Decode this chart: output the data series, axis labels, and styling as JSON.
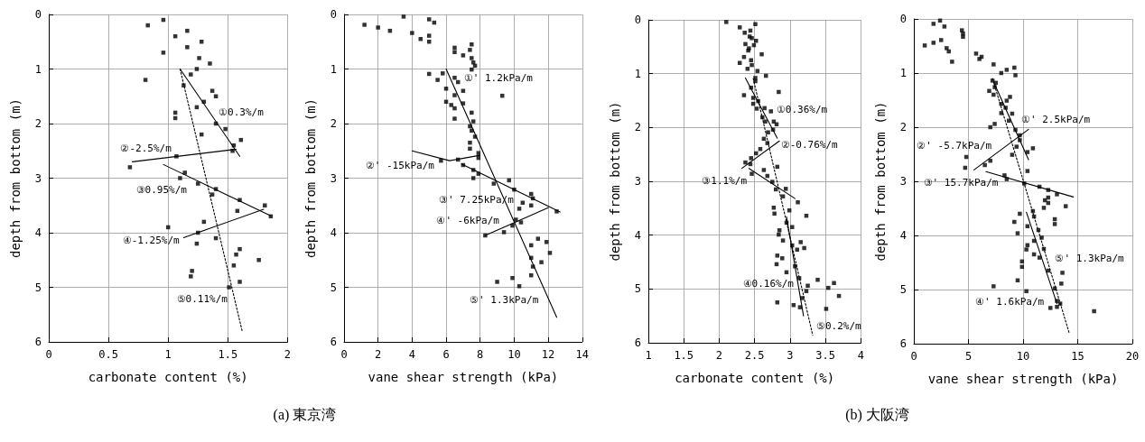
{
  "chart_data": [
    {
      "type": "scatter",
      "xlabel": "carbonate content (%)",
      "ylabel": "depth from bottom (m)",
      "xlim": [
        0,
        2
      ],
      "xticks": [
        0,
        0.5,
        1,
        1.5,
        2
      ],
      "ylim": [
        6,
        0
      ],
      "yticks": [
        0,
        1,
        2,
        3,
        4,
        5,
        6
      ],
      "grid": true,
      "marker": "square",
      "series": [
        {
          "type": "scatter",
          "color": "#000000",
          "x": [
            0.96,
            0.83,
            1.16,
            1.06,
            1.28,
            1.16,
            0.96,
            1.26,
            1.35,
            1.24,
            1.19,
            0.81,
            1.13,
            1.37,
            1.4,
            1.3,
            1.24,
            1.06,
            1.06,
            1.4,
            1.48,
            1.28,
            1.61,
            1.55,
            1.54,
            1.07,
            0.68,
            1.14,
            1.1,
            1.25,
            1.4,
            1.37,
            1.6,
            1.81,
            1.58,
            1.86,
            1.3,
            1.0,
            1.25,
            1.4,
            1.24,
            1.6,
            1.57,
            1.76,
            1.55,
            1.2,
            1.19,
            1.6,
            1.51
          ],
          "values": [
            0.1,
            0.2,
            0.3,
            0.4,
            0.5,
            0.6,
            0.7,
            0.8,
            0.9,
            1.0,
            1.1,
            1.2,
            1.3,
            1.4,
            1.5,
            1.6,
            1.7,
            1.8,
            1.9,
            2.0,
            2.1,
            2.2,
            2.3,
            2.4,
            2.5,
            2.6,
            2.8,
            2.9,
            3.0,
            3.1,
            3.2,
            3.3,
            3.4,
            3.5,
            3.6,
            3.7,
            3.8,
            3.9,
            4.0,
            4.1,
            4.2,
            4.3,
            4.4,
            4.5,
            4.6,
            4.7,
            4.8,
            4.9,
            5.0
          ]
        },
        {
          "type": "line",
          "color": "#000000",
          "marker": "none",
          "line_style": "solid",
          "x": [
            1.1,
            1.6
          ],
          "values": [
            1.0,
            2.6
          ]
        },
        {
          "type": "line",
          "color": "#000000",
          "marker": "none",
          "line_style": "solid",
          "x": [
            0.7,
            1.57
          ],
          "values": [
            2.7,
            2.47
          ]
        },
        {
          "type": "line",
          "color": "#000000",
          "marker": "none",
          "line_style": "solid",
          "x": [
            0.96,
            1.86
          ],
          "values": [
            2.75,
            3.69
          ]
        },
        {
          "type": "line",
          "color": "#000000",
          "marker": "none",
          "line_style": "solid",
          "x": [
            1.13,
            1.8
          ],
          "values": [
            4.09,
            3.57
          ]
        },
        {
          "type": "line",
          "color": "#000000",
          "marker": "none",
          "line_style": "dotted",
          "x": [
            1.1,
            1.62
          ],
          "values": [
            1.0,
            5.8
          ]
        }
      ],
      "annotations": [
        {
          "text": "①0.3%/m",
          "x": 1.37,
          "y": 1.8
        },
        {
          "text": "②-2.5%/m",
          "x": 1.08,
          "y": 2.57
        },
        {
          "text": "③0.95%/m",
          "x": 1.21,
          "y": 3.04
        },
        {
          "text": "④-1.25%/m",
          "x": 1.17,
          "y": 4.03
        },
        {
          "text": "⑤0.11%/m",
          "x": 1.55,
          "y": 5.22
        },
        "(a)  東京湾"
      ]
    },
    {
      "type": "scatter",
      "xlabel": "vane shear strength (kPa)",
      "ylabel": "depth from bottom (m)",
      "xlim": [
        0,
        14
      ],
      "xticks": [
        0,
        2,
        4,
        6,
        8,
        10,
        12,
        14
      ],
      "ylim": [
        6,
        0
      ],
      "yticks": [
        0,
        1,
        2,
        3,
        4,
        5,
        6
      ],
      "grid": true,
      "marker": "square",
      "series": [
        {
          "type": "scatter",
          "color": "#000000",
          "x": [
            1.2,
            2.0,
            2.7,
            3.5,
            4.0,
            4.5,
            5.0,
            5.3,
            5.0,
            5.0,
            6.5,
            7.5,
            6.5,
            7.0,
            7.4,
            7.5,
            7.6,
            7.7,
            7.5,
            5.0,
            5.8,
            5.5,
            6.5,
            6.7,
            6.0,
            7.0,
            6.5,
            6.0,
            6.3,
            6.5,
            7.0,
            7.5,
            6.5,
            7.6,
            7.4,
            7.5,
            7.7,
            7.4,
            7.4,
            7.9,
            7.9,
            6.7,
            5.7,
            7.0,
            7.6,
            7.9,
            7.6,
            8.8,
            9.7,
            10.0,
            11.0,
            11.1,
            10.5,
            10.3,
            11.0,
            12.5,
            10.1,
            10.4,
            9.9,
            9.4,
            8.3,
            11.4,
            11.9,
            11.0,
            12.1,
            11.0,
            11.6,
            11.1,
            11.0,
            9.9,
            9.0,
            10.3,
            9.3
          ],
          "values": [
            0.19,
            0.24,
            0.3,
            0.04,
            0.34,
            0.45,
            0.09,
            0.15,
            0.39,
            0.5,
            0.61,
            0.55,
            0.69,
            0.75,
            0.65,
            0.8,
            0.88,
            0.94,
            1.01,
            1.09,
            1.08,
            1.2,
            1.16,
            1.24,
            1.36,
            1.4,
            1.48,
            1.6,
            1.66,
            1.72,
            1.63,
            1.8,
            1.91,
            1.96,
            2.05,
            2.13,
            2.24,
            2.35,
            2.46,
            2.54,
            2.63,
            2.66,
            2.68,
            2.76,
            2.85,
            2.92,
            3.0,
            3.1,
            3.04,
            3.21,
            3.29,
            3.37,
            3.45,
            3.56,
            3.5,
            3.61,
            3.76,
            3.81,
            3.87,
            3.99,
            4.05,
            4.11,
            4.17,
            4.23,
            4.37,
            4.46,
            4.54,
            4.62,
            4.78,
            4.83,
            4.9,
            4.98,
            1.49
          ]
        },
        {
          "type": "line",
          "color": "#000000",
          "marker": "none",
          "line_style": "solid",
          "x": [
            6.0,
            12.5
          ],
          "values": [
            1.0,
            5.55
          ]
        },
        {
          "type": "line",
          "color": "#000000",
          "marker": "none",
          "line_style": "solid",
          "x": [
            4.0,
            6.2,
            8.0
          ],
          "values": [
            2.5,
            2.68,
            2.58
          ]
        },
        {
          "type": "line",
          "color": "#000000",
          "marker": "none",
          "line_style": "solid",
          "x": [
            6.9,
            12.7
          ],
          "values": [
            2.74,
            3.62
          ]
        },
        {
          "type": "line",
          "color": "#000000",
          "marker": "none",
          "line_style": "solid",
          "x": [
            8.3,
            12.0
          ],
          "values": [
            4.05,
            3.54
          ]
        }
      ],
      "annotations": [
        {
          "text": "①' 1.2kPa/m",
          "x": 6.3,
          "y": 1.16
        },
        {
          "text": "②' -15kPa/m",
          "x": 6.05,
          "y": 2.66
        },
        {
          "text": "③' 7.25kPa/m",
          "x": 10.5,
          "y": 3.28
        },
        {
          "text": "④' -6kPa/m",
          "x": 9.5,
          "y": 3.9
        },
        {
          "text": "⑤' 1.3kPa/m",
          "x": 11.8,
          "y": 5.12
        }
      ]
    },
    {
      "type": "scatter",
      "xlabel": "carbonate content (%)",
      "ylabel": "depth from bottom (m)",
      "xlim": [
        1,
        4
      ],
      "xticks": [
        1,
        1.5,
        2,
        2.5,
        3,
        3.5,
        4
      ],
      "ylim": [
        6,
        0
      ],
      "yticks": [
        0,
        1,
        2,
        3,
        4,
        5,
        6
      ],
      "grid": true,
      "marker": "square",
      "series": [
        {
          "type": "scatter",
          "color": "#000000",
          "x": [
            2.1,
            2.51,
            2.29,
            2.44,
            2.36,
            2.43,
            2.46,
            2.52,
            2.37,
            2.49,
            2.42,
            2.41,
            2.6,
            2.35,
            2.45,
            2.29,
            2.46,
            2.4,
            2.54,
            2.51,
            2.66,
            2.51,
            2.45,
            2.84,
            2.35,
            2.48,
            2.55,
            2.48,
            2.53,
            2.64,
            2.73,
            2.61,
            2.65,
            2.77,
            2.81,
            2.76,
            2.69,
            2.63,
            2.68,
            2.58,
            2.52,
            2.45,
            2.44,
            2.37,
            2.82,
            2.63,
            2.46,
            2.68,
            2.75,
            2.8,
            2.94,
            2.9,
            3.11,
            2.77,
            2.78,
            2.99,
            3.23,
            2.95,
            3.03,
            2.85,
            2.84,
            2.9,
            3.03,
            3.15,
            3.2,
            3.1,
            2.82,
            2.89,
            2.81,
            3.07,
            2.95,
            3.13,
            3.39,
            3.62,
            3.25,
            3.54,
            3.23,
            3.17,
            3.69,
            2.82,
            3.05,
            3.14,
            3.51
          ],
          "values": [
            0.04,
            0.08,
            0.14,
            0.2,
            0.24,
            0.31,
            0.34,
            0.39,
            0.45,
            0.47,
            0.53,
            0.57,
            0.64,
            0.69,
            0.75,
            0.8,
            0.84,
            0.91,
            0.95,
            1.08,
            1.04,
            1.14,
            1.26,
            1.34,
            1.4,
            1.45,
            1.51,
            1.56,
            1.65,
            1.64,
            1.7,
            1.81,
            1.89,
            1.89,
            1.94,
            2.04,
            2.09,
            2.21,
            2.29,
            2.4,
            2.48,
            2.57,
            2.68,
            2.65,
            2.73,
            2.79,
            2.86,
            2.9,
            3.01,
            3.15,
            3.14,
            3.28,
            3.39,
            3.49,
            3.6,
            3.54,
            3.64,
            3.77,
            3.85,
            3.91,
            3.99,
            4.1,
            4.19,
            4.13,
            4.24,
            4.27,
            4.38,
            4.43,
            4.54,
            4.58,
            4.69,
            4.8,
            4.83,
            4.89,
            4.94,
            4.98,
            5.04,
            5.17,
            5.13,
            5.25,
            5.3,
            5.34,
            5.37
          ]
        },
        {
          "type": "line",
          "color": "#000000",
          "marker": "none",
          "line_style": "solid",
          "x": [
            2.37,
            2.82
          ],
          "values": [
            1.08,
            2.2
          ]
        },
        {
          "type": "line",
          "color": "#000000",
          "marker": "none",
          "line_style": "solid",
          "x": [
            2.32,
            2.85
          ],
          "values": [
            2.76,
            2.25
          ]
        },
        {
          "type": "line",
          "color": "#000000",
          "marker": "none",
          "line_style": "solid",
          "x": [
            2.42,
            3.07
          ],
          "values": [
            2.76,
            3.32
          ]
        },
        {
          "type": "line",
          "color": "#000000",
          "marker": "none",
          "line_style": "solid",
          "x": [
            2.95,
            3.19
          ],
          "values": [
            3.66,
            5.5
          ]
        },
        {
          "type": "line",
          "color": "#000000",
          "marker": "none",
          "line_style": "dotted",
          "x": [
            2.48,
            3.32
          ],
          "values": [
            1.09,
            5.86
          ]
        }
      ],
      "annotations": [
        {
          "text": "①0.36%/m",
          "x": 2.68,
          "y": 1.67
        },
        {
          "text": "②-0.76%/m",
          "x": 2.78,
          "y": 2.32
        },
        {
          "text": "③1.1%/m",
          "x": 2.48,
          "y": 2.87
        },
        {
          "text": "④0.16%/m",
          "x": 3.14,
          "y": 4.91
        },
        {
          "text": "⑤0.2%/m",
          "x": 3.28,
          "y": 5.69
        },
        "(b)  大阪湾"
      ]
    },
    {
      "type": "scatter",
      "xlabel": "vane shear strength (kPa)",
      "ylabel": "depth from bottom (m)",
      "xlim": [
        0,
        20
      ],
      "xticks": [
        0,
        5,
        10,
        15,
        20
      ],
      "ylim": [
        6,
        0
      ],
      "yticks": [
        0,
        1,
        2,
        3,
        4,
        5,
        6
      ],
      "grid": true,
      "marker": "square",
      "series": [
        {
          "type": "scatter",
          "color": "#000000",
          "x": [
            1.8,
            2.4,
            2.8,
            1.0,
            1.8,
            2.5,
            3.0,
            3.2,
            3.5,
            4.4,
            4.5,
            4.5,
            5.7,
            6.0,
            6.2,
            7.3,
            8.0,
            8.5,
            9.2,
            9.3,
            7.2,
            7.5,
            7.4,
            6.9,
            7.3,
            8.8,
            8.5,
            8.0,
            8.4,
            8.0,
            9.0,
            8.7,
            7.4,
            7.0,
            9.3,
            9.7,
            9.7,
            9.4,
            10.4,
            10.9,
            4.8,
            4.7,
            6.5,
            7.0,
            9.0,
            10.4,
            8.3,
            8.5,
            10.1,
            11.5,
            12.3,
            13.1,
            12.0,
            12.3,
            11.9,
            13.9,
            12.3,
            10.9,
            9.7,
            11.0,
            12.9,
            12.9,
            9.2,
            9.5,
            10.4,
            11.4,
            11.7,
            11.0,
            10.4,
            10.3,
            11.9,
            11.0,
            11.5,
            9.9,
            9.9,
            12.3,
            13.6,
            9.5,
            13.5,
            12.9,
            7.3,
            10.3,
            13.1,
            13.4,
            13.1,
            12.5,
            16.5
          ],
          "values": [
            0.09,
            0.03,
            0.14,
            0.49,
            0.44,
            0.39,
            0.54,
            0.6,
            0.79,
            0.21,
            0.27,
            0.33,
            0.64,
            0.74,
            0.7,
            0.84,
            1.0,
            0.94,
            0.9,
            1.04,
            1.14,
            1.18,
            1.26,
            1.33,
            1.4,
            1.44,
            1.51,
            1.57,
            1.64,
            1.74,
            1.75,
            1.88,
            1.94,
            2.0,
            2.05,
            2.15,
            2.24,
            2.36,
            2.46,
            2.39,
            2.55,
            2.75,
            2.7,
            2.62,
            2.51,
            2.81,
            2.89,
            2.96,
            3.04,
            3.1,
            3.16,
            3.24,
            3.35,
            3.4,
            3.49,
            3.46,
            3.3,
            3.55,
            3.6,
            3.65,
            3.7,
            3.79,
            3.75,
            3.96,
            3.83,
            3.9,
            4.04,
            4.1,
            4.18,
            4.26,
            4.25,
            4.35,
            4.41,
            4.48,
            4.58,
            4.65,
            4.69,
            4.83,
            4.89,
            4.98,
            4.94,
            5.03,
            5.21,
            5.26,
            5.32,
            5.34,
            5.4
          ]
        },
        {
          "type": "line",
          "color": "#000000",
          "marker": "none",
          "line_style": "solid",
          "x": [
            7.4,
            10.5
          ],
          "values": [
            1.21,
            2.6
          ]
        },
        {
          "type": "line",
          "color": "#000000",
          "marker": "none",
          "line_style": "solid",
          "x": [
            5.5,
            10.5
          ],
          "values": [
            2.79,
            2.04
          ]
        },
        {
          "type": "line",
          "color": "#000000",
          "marker": "none",
          "line_style": "solid",
          "x": [
            6.6,
            14.6
          ],
          "values": [
            2.82,
            3.29
          ]
        },
        {
          "type": "line",
          "color": "#000000",
          "marker": "none",
          "line_style": "solid",
          "x": [
            10.3,
            13.1
          ],
          "values": [
            3.57,
            5.26
          ]
        },
        {
          "type": "line",
          "color": "#000000",
          "marker": "none",
          "line_style": "dotted",
          "x": [
            7.2,
            14.2
          ],
          "values": [
            1.1,
            5.79
          ]
        }
      ],
      "annotations": [
        {
          "text": "①' 2.5kPa/m",
          "x": 9.25,
          "y": 1.98
        },
        {
          "text": "②' -5.7kPa/m",
          "x": 7.7,
          "y": 2.46
        },
        {
          "text": "③' 15.7kPa/m",
          "x": 8.3,
          "y": 3.02
        },
        {
          "text": "④' 1.6kPa/m",
          "x": 12.5,
          "y": 5.11
        },
        {
          "text": "⑤' 1.3kPa/m",
          "x": 12.35,
          "y": 4.54
        }
      ]
    }
  ]
}
